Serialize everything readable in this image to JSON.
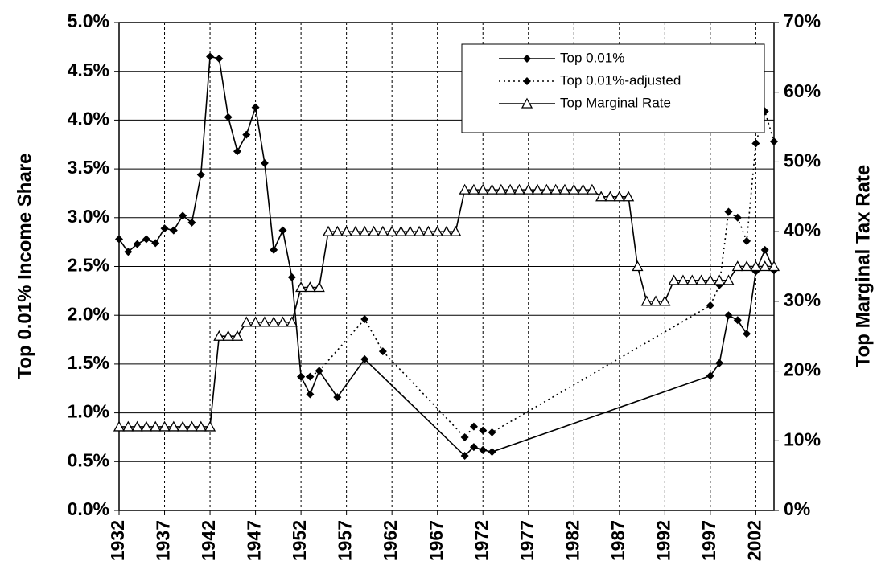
{
  "chart_data": {
    "type": "line",
    "y_label": "Top 0.01% Income Share",
    "y2_label": "Top Marginal Tax Rate",
    "xlim": [
      1932,
      2004
    ],
    "xticks": [
      1932,
      1937,
      1942,
      1947,
      1952,
      1957,
      1962,
      1967,
      1972,
      1977,
      1982,
      1987,
      1992,
      1997,
      2002
    ],
    "ylim": [
      0,
      5
    ],
    "yticks": [
      {
        "value": 0,
        "label": "0.0%"
      },
      {
        "value": 0.5,
        "label": "0.5%"
      },
      {
        "value": 1,
        "label": "1.0%"
      },
      {
        "value": 1.5,
        "label": "1.5%"
      },
      {
        "value": 2,
        "label": "2.0%"
      },
      {
        "value": 2.5,
        "label": "2.5%"
      },
      {
        "value": 3,
        "label": "3.0%"
      },
      {
        "value": 3.5,
        "label": "3.5%"
      },
      {
        "value": 4,
        "label": "4.0%"
      },
      {
        "value": 4.5,
        "label": "4.5%"
      },
      {
        "value": 5,
        "label": "5.0%"
      }
    ],
    "y2lim": [
      0,
      70
    ],
    "y2ticks": [
      {
        "value": 0,
        "label": "0%"
      },
      {
        "value": 10,
        "label": "10%"
      },
      {
        "value": 20,
        "label": "20%"
      },
      {
        "value": 30,
        "label": "30%"
      },
      {
        "value": 40,
        "label": "40%"
      },
      {
        "value": 50,
        "label": "50%"
      },
      {
        "value": 60,
        "label": "60%"
      },
      {
        "value": 70,
        "label": "70%"
      }
    ],
    "grid": true,
    "legend": "top-right",
    "series": [
      {
        "name": "Top 0.01%",
        "color": "#000000",
        "marker": "diamond",
        "dash": "solid",
        "x": [
          1932,
          1933,
          1934,
          1935,
          1936,
          1937,
          1938,
          1939,
          1940,
          1941,
          1942,
          1943,
          1944,
          1945,
          1946,
          1947,
          1948,
          1949,
          1950,
          1951,
          1952,
          1953,
          1954,
          1956,
          1959,
          1970,
          1971,
          1972,
          1973,
          1997,
          1998,
          1999,
          2000,
          2001,
          2002,
          2003,
          2004
        ],
        "values": [
          2.78,
          2.65,
          2.73,
          2.78,
          2.74,
          2.89,
          2.87,
          3.02,
          2.95,
          3.44,
          4.65,
          4.63,
          4.03,
          3.68,
          3.85,
          4.13,
          3.56,
          2.67,
          2.87,
          2.39,
          1.37,
          1.19,
          1.43,
          1.16,
          1.55,
          0.56,
          0.65,
          0.62,
          0.6,
          1.38,
          1.51,
          2.0,
          1.95,
          1.81,
          2.45,
          2.67,
          2.46
        ]
      },
      {
        "name": "Top 0.01%-adjusted",
        "color": "#000000",
        "marker": "diamond",
        "dash": "dotted",
        "x": [
          1952,
          1953,
          1954,
          1959,
          1961,
          1970,
          1971,
          1972,
          1973,
          1997,
          1998,
          1999,
          2000,
          2001,
          2002,
          2003,
          2004
        ],
        "values": [
          1.37,
          1.37,
          1.43,
          1.96,
          1.63,
          0.75,
          0.86,
          0.82,
          0.8,
          2.1,
          2.31,
          3.06,
          3.0,
          2.76,
          3.76,
          4.09,
          3.78
        ]
      },
      {
        "name": "Top Marginal Rate",
        "color": "#000000",
        "marker": "triangle",
        "dash": "solid",
        "axis": "y2",
        "x": [
          1932,
          1933,
          1934,
          1935,
          1936,
          1937,
          1938,
          1939,
          1940,
          1941,
          1942,
          1943,
          1944,
          1945,
          1946,
          1947,
          1948,
          1949,
          1950,
          1951,
          1952,
          1953,
          1954,
          1955,
          1956,
          1957,
          1958,
          1959,
          1960,
          1961,
          1962,
          1963,
          1964,
          1965,
          1966,
          1967,
          1968,
          1969,
          1970,
          1971,
          1972,
          1973,
          1974,
          1975,
          1976,
          1977,
          1978,
          1979,
          1980,
          1981,
          1982,
          1983,
          1984,
          1985,
          1986,
          1987,
          1988,
          1989,
          1990,
          1991,
          1992,
          1993,
          1994,
          1995,
          1996,
          1997,
          1998,
          1999,
          2000,
          2001,
          2002,
          2003,
          2004
        ],
        "values": [
          12,
          12,
          12,
          12,
          12,
          12,
          12,
          12,
          12,
          12,
          12,
          25,
          25,
          25,
          27,
          27,
          27,
          27,
          27,
          27,
          32,
          32,
          32,
          40,
          40,
          40,
          40,
          40,
          40,
          40,
          40,
          40,
          40,
          40,
          40,
          40,
          40,
          40,
          46,
          46,
          46,
          46,
          46,
          46,
          46,
          46,
          46,
          46,
          46,
          46,
          46,
          46,
          46,
          45,
          45,
          45,
          45,
          35,
          30,
          30,
          30,
          33,
          33,
          33,
          33,
          33,
          33,
          33,
          35,
          35,
          35,
          35,
          35
        ]
      }
    ]
  }
}
